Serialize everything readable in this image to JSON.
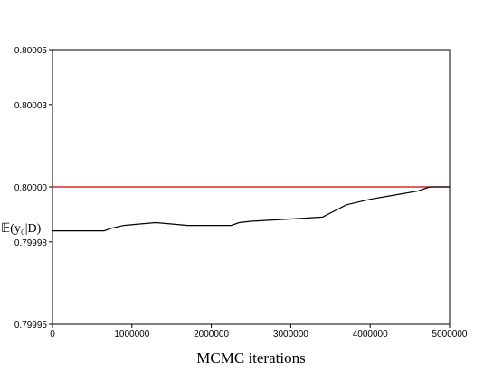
{
  "chart_data": {
    "type": "line",
    "title": "",
    "xlabel": "MCMC iterations",
    "ylabel": "𝔼(y₀|D)",
    "xlim": [
      0,
      5000000
    ],
    "ylim": [
      0.79995,
      0.80005
    ],
    "xticks": [
      0,
      1000000,
      2000000,
      3000000,
      4000000,
      5000000
    ],
    "xtick_labels": [
      "0",
      "1000000",
      "2000000",
      "3000000",
      "4000000",
      "5000000"
    ],
    "yticks": [
      0.79995,
      0.79998,
      0.8,
      0.80003,
      0.80005
    ],
    "ytick_labels": [
      "0.79995",
      "0.79998",
      "0.80000",
      "0.80003",
      "0.80005"
    ],
    "grid": false,
    "series": [
      {
        "color": "#cc0000",
        "x": [
          0,
          5000000
        ],
        "y": [
          0.8,
          0.8
        ]
      },
      {
        "color": "#000000",
        "x": [
          0,
          650000,
          750000,
          900000,
          1100000,
          1300000,
          1500000,
          1700000,
          2000000,
          2250000,
          2350000,
          2500000,
          2800000,
          3100000,
          3400000,
          3700000,
          4000000,
          4300000,
          4600000,
          4750000,
          5000000
        ],
        "y": [
          0.799984,
          0.799984,
          0.799985,
          0.799986,
          0.7999865,
          0.799987,
          0.7999865,
          0.799986,
          0.799986,
          0.799986,
          0.799987,
          0.7999875,
          0.799988,
          0.7999885,
          0.799989,
          0.7999935,
          0.7999955,
          0.799997,
          0.7999985,
          0.8,
          0.8
        ]
      }
    ]
  }
}
